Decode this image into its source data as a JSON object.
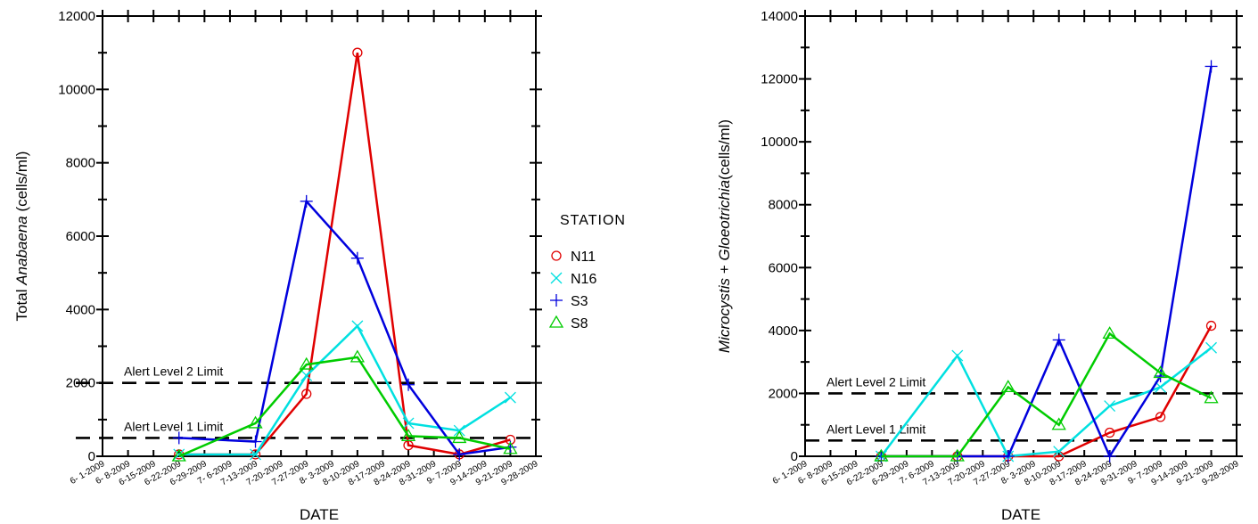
{
  "chart_data": [
    {
      "type": "line",
      "ylabel_parts": [
        "Total ",
        "Anabaena",
        "  (cells/ml)"
      ],
      "xlabel": "DATE",
      "ylim": [
        0,
        12000
      ],
      "yticks": [
        0,
        2000,
        4000,
        6000,
        8000,
        10000,
        12000
      ],
      "x_categories": [
        "6- 1-2009",
        "6- 8-2009",
        "6-15-2009",
        "6-22-2009",
        "6-29-2009",
        "7- 6-2009",
        "7-13-2009",
        "7-20-2009",
        "7-27-2009",
        "8- 3-2009",
        "8-10-2009",
        "8-17-2009",
        "8-24-2009",
        "8-31-2009",
        "9- 7-2009",
        "9-14-2009",
        "9-21-2009",
        "9-28-2009"
      ],
      "series": [
        {
          "name": "N11",
          "color": "#e00000",
          "marker": "circle",
          "x": [
            3,
            6,
            8,
            10,
            12,
            14,
            16
          ],
          "y": [
            50,
            50,
            1700,
            11000,
            300,
            50,
            450
          ]
        },
        {
          "name": "N16",
          "color": "#00e0e0",
          "marker": "x",
          "x": [
            3,
            6,
            8,
            10,
            12,
            14,
            16
          ],
          "y": [
            50,
            50,
            2200,
            3550,
            900,
            700,
            1600
          ]
        },
        {
          "name": "S3",
          "color": "#0000dd",
          "marker": "plus",
          "x": [
            3,
            6,
            8,
            10,
            12,
            14,
            16
          ],
          "y": [
            500,
            400,
            6950,
            5400,
            1950,
            50,
            250
          ]
        },
        {
          "name": "S8",
          "color": "#00cc00",
          "marker": "triangle",
          "x": [
            3,
            6,
            8,
            10,
            12,
            14,
            16
          ],
          "y": [
            0,
            900,
            2500,
            2700,
            550,
            500,
            200
          ]
        }
      ],
      "reference_lines": [
        {
          "label": "Alert Level 2 Limit",
          "y": 2000
        },
        {
          "label": "Alert Level 1 Limit",
          "y": 500
        }
      ]
    },
    {
      "type": "line",
      "ylabel_parts": [
        "Microcystis",
        " + ",
        "Gloeotrichia",
        "(cells/ml)"
      ],
      "xlabel": "DATE",
      "ylim": [
        0,
        14000
      ],
      "yticks": [
        0,
        2000,
        4000,
        6000,
        8000,
        10000,
        12000,
        14000
      ],
      "x_categories": [
        "6- 1-2009",
        "6- 8-2009",
        "6-15-2009",
        "6-22-2009",
        "6-29-2009",
        "7- 6-2009",
        "7-13-2009",
        "7-20-2009",
        "7-27-2009",
        "8- 3-2009",
        "8-10-2009",
        "8-17-2009",
        "8-24-2009",
        "8-31-2009",
        "9- 7-2009",
        "9-14-2009",
        "9-21-2009",
        "9-28-2009"
      ],
      "series": [
        {
          "name": "N11",
          "color": "#e00000",
          "marker": "circle",
          "x": [
            3,
            6,
            8,
            10,
            12,
            14,
            16
          ],
          "y": [
            0,
            0,
            0,
            0,
            750,
            1250,
            4150
          ]
        },
        {
          "name": "N16",
          "color": "#00e0e0",
          "marker": "x",
          "x": [
            3,
            6,
            8,
            10,
            12,
            14,
            16
          ],
          "y": [
            0,
            3200,
            0,
            150,
            1600,
            2200,
            3450
          ]
        },
        {
          "name": "S3",
          "color": "#0000dd",
          "marker": "plus",
          "x": [
            3,
            6,
            8,
            10,
            12,
            14,
            16
          ],
          "y": [
            0,
            0,
            0,
            3700,
            0,
            2550,
            12400
          ]
        },
        {
          "name": "S8",
          "color": "#00cc00",
          "marker": "triangle",
          "x": [
            3,
            6,
            8,
            10,
            12,
            14,
            16
          ],
          "y": [
            0,
            0,
            2200,
            1000,
            3900,
            2650,
            1850
          ]
        }
      ],
      "reference_lines": [
        {
          "label": "Alert Level 2 Limit",
          "y": 2000
        },
        {
          "label": "Alert Level 1 Limit",
          "y": 500
        }
      ]
    }
  ],
  "legend": {
    "title": "STATION",
    "items": [
      {
        "label": "N11",
        "color": "#e00000",
        "marker": "circle"
      },
      {
        "label": "N16",
        "color": "#00e0e0",
        "marker": "x"
      },
      {
        "label": "S3",
        "color": "#0000dd",
        "marker": "plus"
      },
      {
        "label": "S8",
        "color": "#00cc00",
        "marker": "triangle"
      }
    ]
  }
}
